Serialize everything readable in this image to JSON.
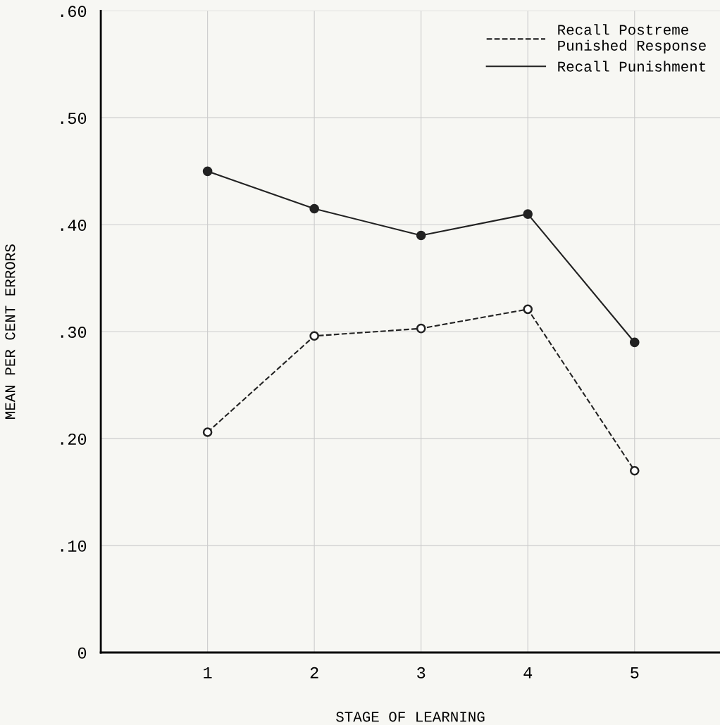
{
  "chart_data": {
    "type": "line",
    "xlabel": "STAGE OF LEARNING",
    "ylabel": "MEAN PER CENT ERRORS",
    "x": [
      1,
      2,
      3,
      4,
      5
    ],
    "series": [
      {
        "name": "Recall Postreme\nPunished Response",
        "color": "#222222",
        "values": [
          0.206,
          0.296,
          0.303,
          0.321,
          0.17
        ],
        "line_style": "dashed",
        "marker": "circle"
      },
      {
        "name": "Recall Punishment",
        "color": "#222222",
        "values": [
          0.45,
          0.415,
          0.39,
          0.41,
          0.29
        ],
        "line_style": "solid",
        "marker": "circle"
      }
    ],
    "xlim": [
      0,
      5.8
    ],
    "xticks": [
      1,
      2,
      3,
      4,
      5
    ],
    "ylim": [
      0,
      0.6
    ],
    "yticks": [
      {
        "value": 0,
        "label": "0"
      },
      {
        "value": 0.1,
        "label": ".10"
      },
      {
        "value": 0.2,
        "label": ".20"
      },
      {
        "value": 0.3,
        "label": ".30"
      },
      {
        "value": 0.4,
        "label": ".40"
      },
      {
        "value": 0.5,
        "label": ".50"
      },
      {
        "value": 0.6,
        "label": ".60"
      }
    ],
    "grid": true,
    "legend": "top right"
  }
}
